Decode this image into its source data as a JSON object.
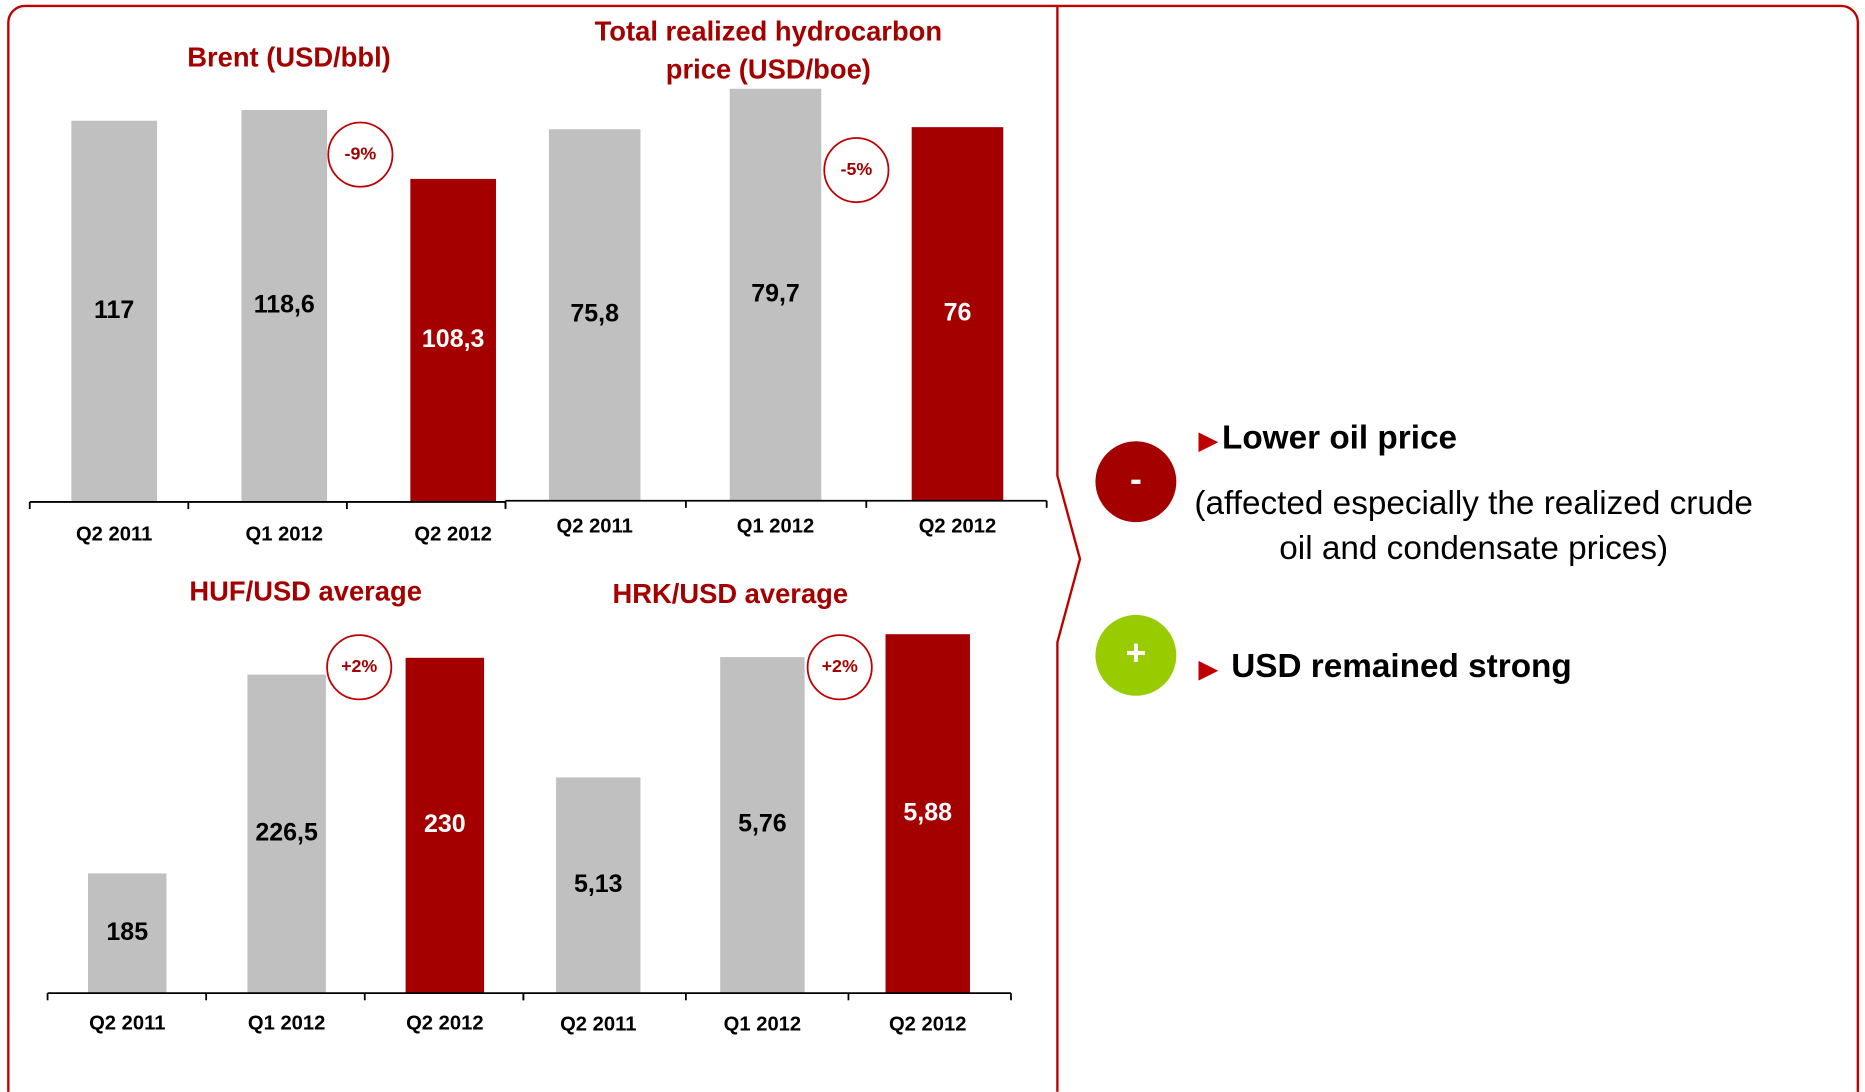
{
  "chart_data": [
    {
      "type": "bar",
      "title": "Brent (USD/bbl)",
      "categories": [
        "Q2 2011",
        "Q1 2012",
        "Q2 2012"
      ],
      "values": [
        117,
        118.6,
        108.3
      ],
      "value_labels": [
        "117",
        "118,6",
        "108,3"
      ],
      "colors": [
        "#c0c0c0",
        "#c0c0c0",
        "#a50000"
      ],
      "ylim": [
        60,
        121
      ],
      "annotation": "-9%"
    },
    {
      "type": "bar",
      "title": "Total realized hydrocarbon price (USD/boe)",
      "categories": [
        "Q2 2011",
        "Q1 2012",
        "Q2 2012"
      ],
      "values": [
        75.8,
        79.7,
        76
      ],
      "value_labels": [
        "75,8",
        "79,7",
        "76"
      ],
      "colors": [
        "#c0c0c0",
        "#c0c0c0",
        "#a50000"
      ],
      "ylim": [
        40,
        80
      ],
      "annotation": "-5%"
    },
    {
      "type": "bar",
      "title": "HUF/USD average",
      "categories": [
        "Q2 2011",
        "Q1 2012",
        "Q2 2012"
      ],
      "values": [
        185,
        226.5,
        230
      ],
      "value_labels": [
        "185",
        "226,5",
        "230"
      ],
      "colors": [
        "#c0c0c0",
        "#c0c0c0",
        "#a50000"
      ],
      "ylim": [
        160,
        232
      ],
      "annotation": "+2%"
    },
    {
      "type": "bar",
      "title": "HRK/USD average",
      "categories": [
        "Q2 2011",
        "Q1 2012",
        "Q2 2012"
      ],
      "values": [
        5.13,
        5.76,
        5.88
      ],
      "value_labels": [
        "5,13",
        "5,76",
        "5,88"
      ],
      "colors": [
        "#c0c0c0",
        "#c0c0c0",
        "#a50000"
      ],
      "ylim": [
        4,
        5.9
      ],
      "annotation": "+2%"
    }
  ],
  "side_panel": {
    "items": [
      {
        "sign": "-",
        "heading": "Lower oil price",
        "detail": "(affected especially the realized crude oil and condensate prices)"
      },
      {
        "sign": "+",
        "heading": "USD remained strong"
      }
    ]
  }
}
